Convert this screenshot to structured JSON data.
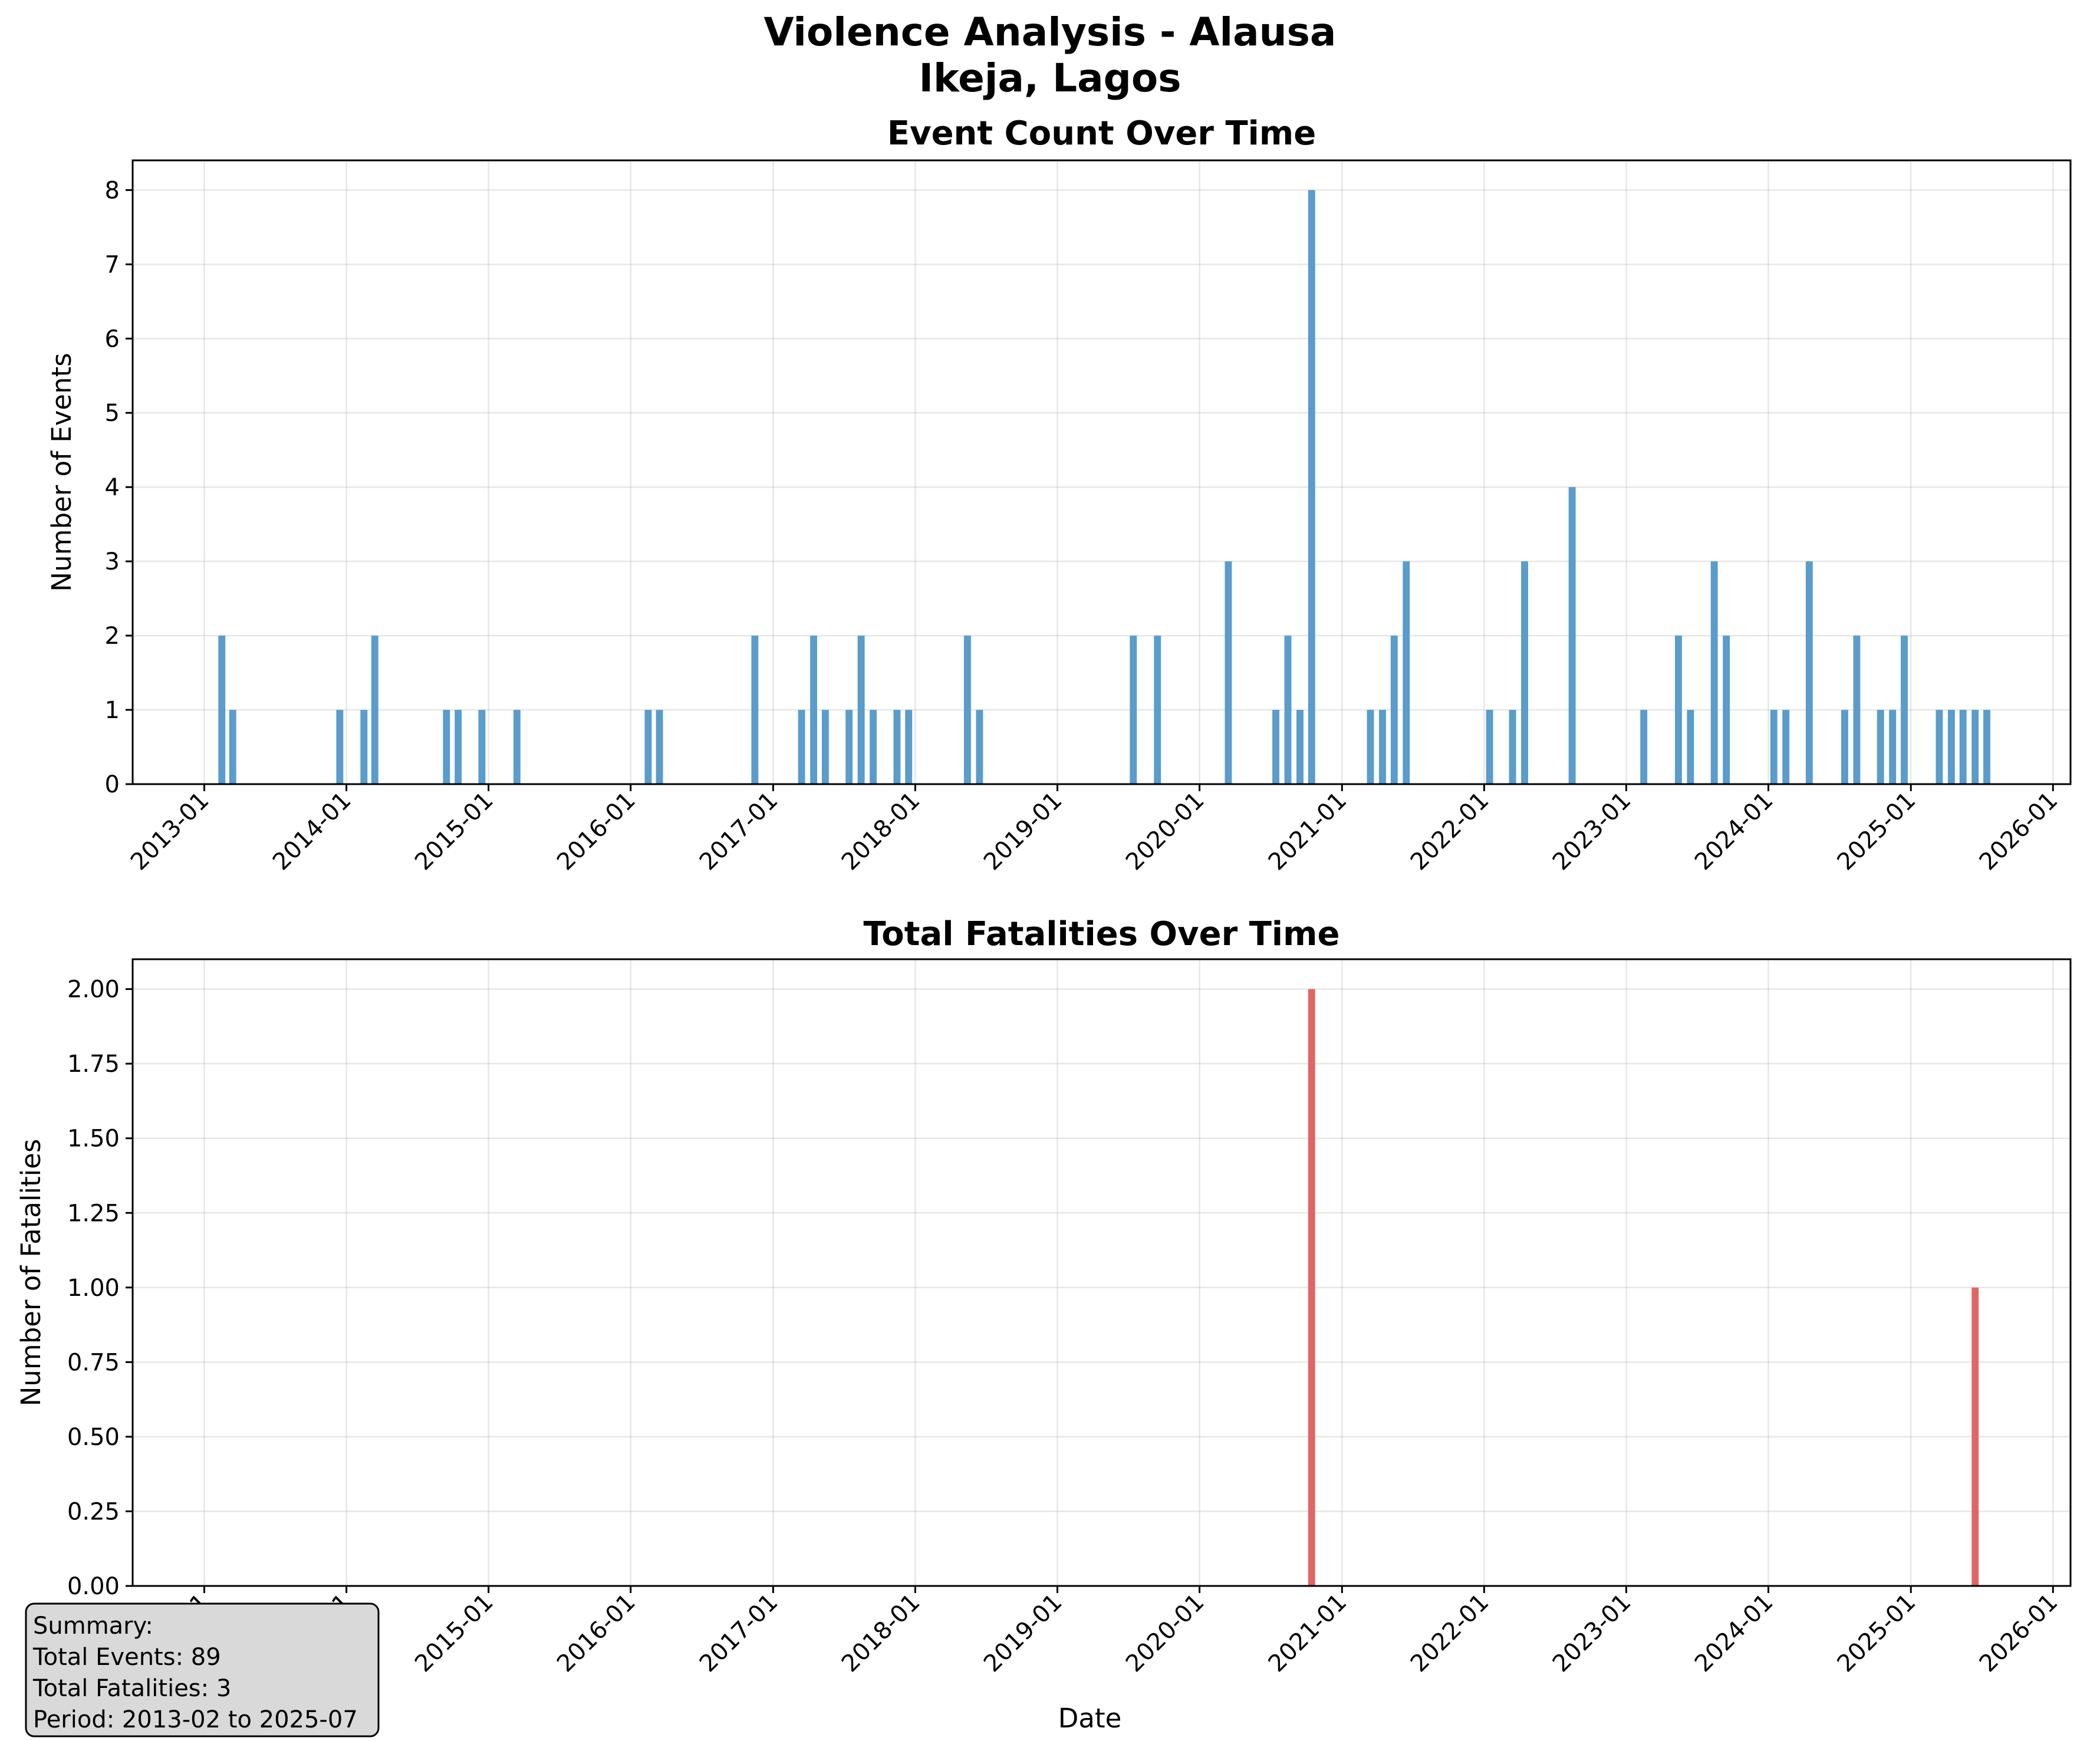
{
  "figure": {
    "suptitle_lines": [
      "Violence Analysis - Alausa",
      "Ikeja, Lagos"
    ]
  },
  "chart_data": [
    {
      "type": "bar",
      "title": "Event Count Over Time",
      "xlabel": "",
      "ylabel": "Number of Events",
      "color": "#5a9ccb",
      "ylim": [
        0,
        8.4
      ],
      "yticks": [
        0,
        1,
        2,
        3,
        4,
        5,
        6,
        7,
        8
      ],
      "ytick_labels": [
        "0",
        "1",
        "2",
        "3",
        "4",
        "5",
        "6",
        "7",
        "8"
      ],
      "xlim": [
        "2012-07-01",
        "2026-02-15"
      ],
      "xtick_labels": [
        "2013-01",
        "2014-01",
        "2015-01",
        "2016-01",
        "2017-01",
        "2018-01",
        "2019-01",
        "2020-01",
        "2021-01",
        "2022-01",
        "2023-01",
        "2024-01",
        "2025-01",
        "2026-01"
      ],
      "grid": true,
      "x": [
        "2013-02",
        "2013-03",
        "2013-12",
        "2014-02",
        "2014-03",
        "2014-09",
        "2014-10",
        "2014-12",
        "2015-03",
        "2016-02",
        "2016-03",
        "2016-11",
        "2017-03",
        "2017-04",
        "2017-05",
        "2017-07",
        "2017-08",
        "2017-09",
        "2017-11",
        "2017-12",
        "2018-05",
        "2018-06",
        "2019-07",
        "2019-09",
        "2020-03",
        "2020-07",
        "2020-08",
        "2020-09",
        "2020-10",
        "2021-03",
        "2021-04",
        "2021-05",
        "2021-06",
        "2022-01",
        "2022-03",
        "2022-04",
        "2022-08",
        "2023-02",
        "2023-05",
        "2023-06",
        "2023-08",
        "2023-09",
        "2024-01",
        "2024-02",
        "2024-04",
        "2024-07",
        "2024-08",
        "2024-10",
        "2024-11",
        "2024-12",
        "2025-03",
        "2025-04",
        "2025-05",
        "2025-06",
        "2025-07"
      ],
      "values": [
        2,
        1,
        1,
        1,
        2,
        1,
        1,
        1,
        1,
        1,
        1,
        2,
        1,
        2,
        1,
        1,
        2,
        1,
        1,
        1,
        2,
        1,
        2,
        2,
        3,
        1,
        2,
        1,
        8,
        1,
        1,
        2,
        3,
        1,
        1,
        3,
        4,
        1,
        2,
        1,
        3,
        2,
        1,
        1,
        3,
        1,
        2,
        1,
        1,
        2,
        1,
        1,
        1,
        1,
        1
      ]
    },
    {
      "type": "bar",
      "title": "Total Fatalities Over Time",
      "xlabel": "Date",
      "ylabel": "Number of Fatalities",
      "color": "#e06666",
      "ylim": [
        0,
        2.1
      ],
      "yticks": [
        0,
        0.25,
        0.5,
        0.75,
        1,
        1.25,
        1.5,
        1.75,
        2
      ],
      "ytick_labels": [
        "0.00",
        "0.25",
        "0.50",
        "0.75",
        "1.00",
        "1.25",
        "1.50",
        "1.75",
        "2.00"
      ],
      "xlim": [
        "2012-07-01",
        "2026-02-15"
      ],
      "xtick_labels": [
        "2013-01",
        "2014-01",
        "2015-01",
        "2016-01",
        "2017-01",
        "2018-01",
        "2019-01",
        "2020-01",
        "2021-01",
        "2022-01",
        "2023-01",
        "2024-01",
        "2025-01",
        "2026-01"
      ],
      "grid": true,
      "x": [
        "2020-10",
        "2025-06"
      ],
      "values": [
        2,
        1
      ]
    }
  ],
  "summary": {
    "lines": [
      "Summary:",
      "Total Events: 89",
      "Total Fatalities: 3",
      "Period: 2013-02 to 2025-07"
    ]
  }
}
